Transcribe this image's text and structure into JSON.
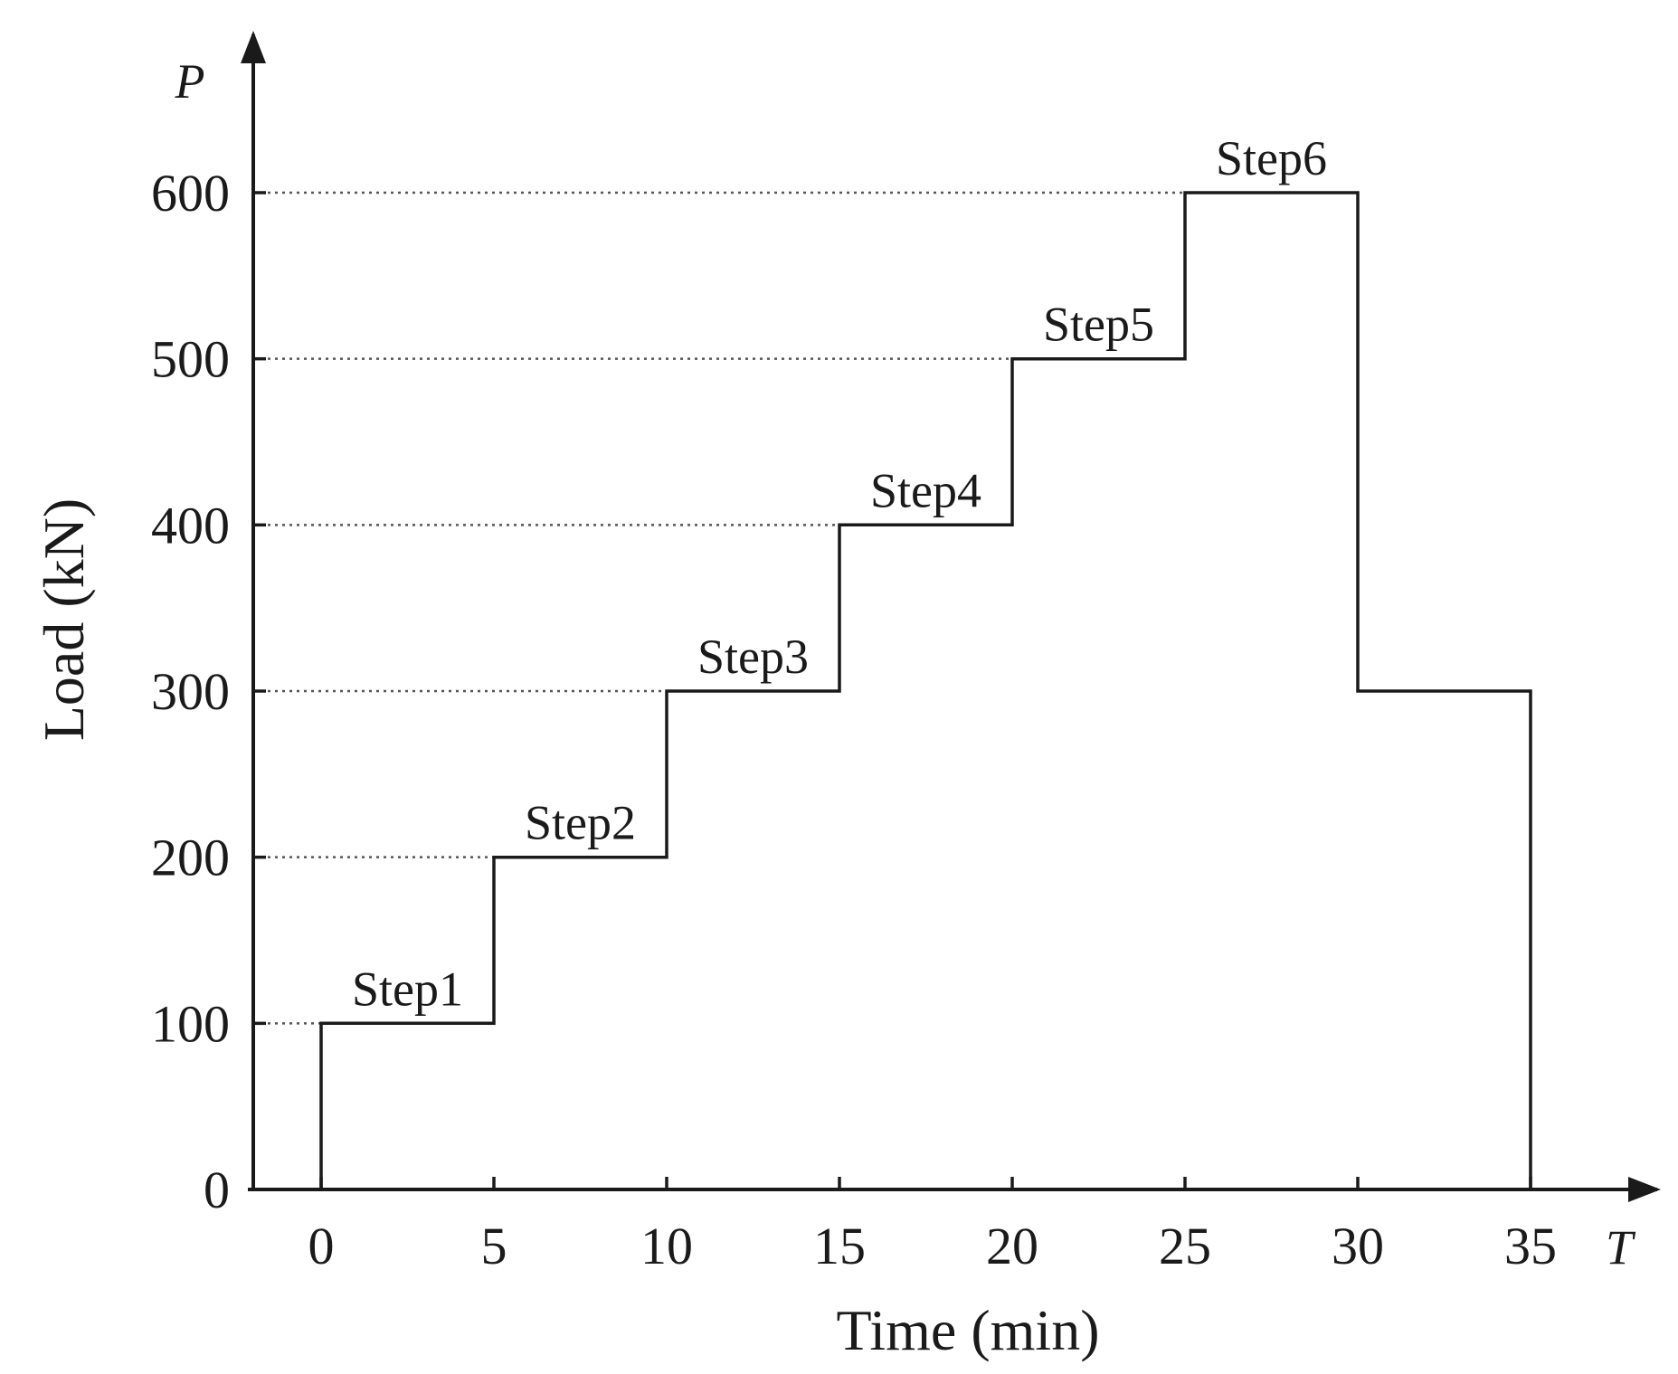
{
  "chart_data": {
    "type": "line",
    "title": "",
    "xlabel": "Time (min)",
    "ylabel": "Load (kN)",
    "x_symbol": "T",
    "y_symbol": "P",
    "xlim": [
      -2,
      35
    ],
    "ylim": [
      0,
      600
    ],
    "x_ticks": [
      0,
      5,
      10,
      15,
      20,
      25,
      30,
      35
    ],
    "y_ticks": [
      0,
      100,
      200,
      300,
      400,
      500,
      600
    ],
    "grid": "dotted horizontal lines at load levels 100-600",
    "colors": {
      "line": "#1a1a1a",
      "grid": "#555555"
    },
    "series": [
      {
        "x": [
          0,
          0,
          5,
          5,
          10,
          10,
          15,
          15,
          20,
          20,
          25,
          25,
          30,
          30,
          35,
          35
        ],
        "y": [
          0,
          100,
          100,
          200,
          200,
          300,
          300,
          400,
          400,
          500,
          500,
          600,
          600,
          300,
          300,
          0
        ]
      }
    ],
    "annotations": [
      {
        "text": "Step1",
        "x": 2.5,
        "y": 100
      },
      {
        "text": "Step2",
        "x": 7.5,
        "y": 200
      },
      {
        "text": "Step3",
        "x": 12.5,
        "y": 300
      },
      {
        "text": "Step4",
        "x": 17.5,
        "y": 400
      },
      {
        "text": "Step5",
        "x": 22.5,
        "y": 500
      },
      {
        "text": "Step6",
        "x": 27.5,
        "y": 600
      }
    ]
  }
}
